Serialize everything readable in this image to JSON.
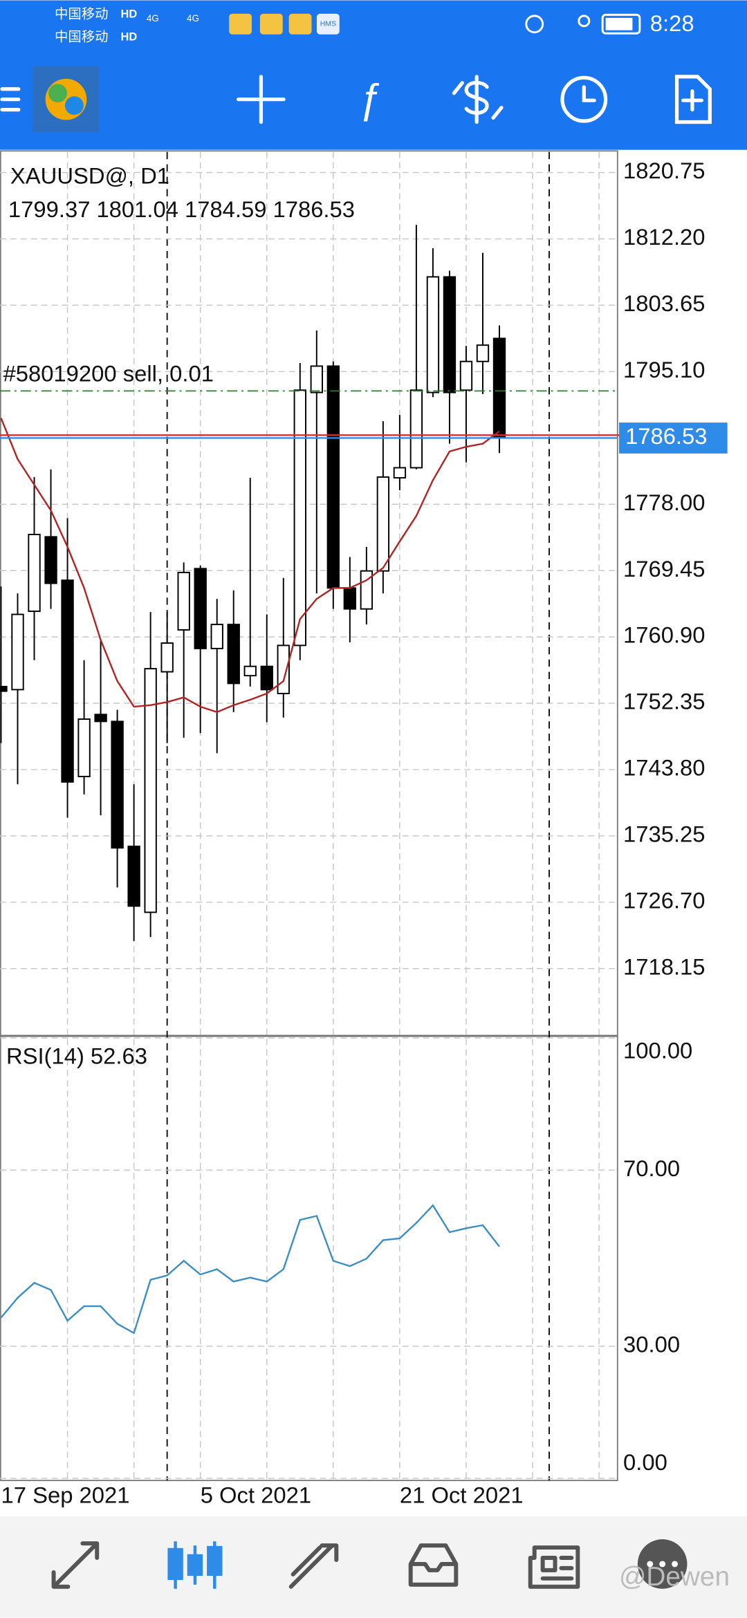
{
  "status_bar": {
    "carrier_1": "中国移动",
    "carrier_2": "中国移动",
    "badge": "HD",
    "network": "4G",
    "hms": "HMS",
    "time": "8:28"
  },
  "chart_data": {
    "type": "candlestick",
    "title": "XAUUSD@, D1",
    "categories": [
      "17 Sep 2021",
      null,
      null,
      null,
      null,
      null,
      null,
      null,
      null,
      null,
      null,
      null,
      "5 Oct 2021",
      null,
      null,
      null,
      null,
      null,
      null,
      null,
      null,
      null,
      null,
      null,
      "21 Oct 2021",
      null,
      null,
      null,
      null,
      null,
      null
    ],
    "open": [
      1754.5,
      1754.1,
      1764.2,
      1773.8,
      1768.2,
      1742.9,
      1750.9,
      1750.0,
      1733.9,
      1725.4,
      1756.4,
      1761.8,
      1769.7,
      1759.4,
      1762.5,
      1755.9,
      1757.1,
      1753.6,
      1759.8,
      1792.4,
      1795.8,
      1767.2,
      1764.5,
      1769.4,
      1781.4,
      1782.7,
      1792.4,
      1807.3,
      1792.7,
      1796.4,
      1799.37
    ],
    "high": [
      1767.4,
      1766.5,
      1781.5,
      1782.5,
      1776.2,
      1757.9,
      1760.5,
      1751.5,
      1741.9,
      1764.1,
      1764.1,
      1770.5,
      1770.1,
      1765.8,
      1766.9,
      1781.4,
      1763.8,
      1768.5,
      1796.2,
      1800.4,
      1796.4,
      1771.2,
      1772.5,
      1788.7,
      1789.5,
      1814.0,
      1811.0,
      1808.1,
      1798.4,
      1810.4,
      1801.04
    ],
    "low": [
      1747.2,
      1741.9,
      1757.9,
      1764.5,
      1737.6,
      1740.6,
      1737.9,
      1728.6,
      1721.7,
      1722.2,
      1747.2,
      1747.9,
      1748.5,
      1745.9,
      1751.2,
      1754.5,
      1749.9,
      1750.5,
      1757.9,
      1766.5,
      1764.5,
      1760.2,
      1762.5,
      1766.5,
      1779.8,
      1782.5,
      1791.8,
      1785.8,
      1783.4,
      1792.2,
      1784.59
    ],
    "close": [
      1753.9,
      1763.8,
      1774.1,
      1767.8,
      1742.2,
      1750.3,
      1750.0,
      1733.7,
      1726.2,
      1756.8,
      1760.1,
      1769.2,
      1759.4,
      1762.5,
      1754.9,
      1757.1,
      1754.1,
      1759.8,
      1792.7,
      1795.8,
      1767.2,
      1764.5,
      1769.4,
      1781.5,
      1782.7,
      1792.7,
      1807.3,
      1792.4,
      1796.4,
      1798.5,
      1786.53
    ],
    "bull_color": "#ffffff",
    "bear_color": "#000000",
    "ma": {
      "color": "#b22222",
      "values": [
        1789.1,
        1783.8,
        1780.5,
        1777.2,
        1772.5,
        1767.2,
        1760.5,
        1755.2,
        1751.9,
        1752.1,
        1752.5,
        1753.1,
        1751.9,
        1751.2,
        1752.1,
        1752.8,
        1753.6,
        1755.2,
        1763.2,
        1765.8,
        1767.2,
        1767.2,
        1768.2,
        1769.8,
        1773.2,
        1776.5,
        1781.1,
        1784.8,
        1785.4,
        1785.8,
        1787.4
      ]
    },
    "order": {
      "label": "#58019200 sell, 0.01",
      "price": 1792.6,
      "color": "#2e7d32"
    },
    "ask": {
      "price": 1786.9,
      "color": "#d32f2f"
    },
    "bid_color": "#2f8be8",
    "ylim": [
      1709.6,
      1823.4
    ],
    "yticks": [
      1820.75,
      {
        "value": 1812.2,
        "label": "1812.20"
      },
      1803.65,
      {
        "value": 1795.1,
        "label": "1795.10"
      },
      {
        "value": 1778,
        "label": "1778.00"
      },
      1769.45,
      {
        "value": 1760.9,
        "label": "1760.90"
      },
      1752.35,
      {
        "value": 1743.8,
        "label": "1743.80"
      },
      1735.25,
      {
        "value": 1726.7,
        "label": "1726.70"
      },
      1718.15
    ],
    "grid": true,
    "rsi": {
      "title": "RSI(14)",
      "color": "#3a8fc0",
      "values": [
        36.5,
        41.0,
        44.4,
        42.8,
        35.8,
        39.1,
        39.1,
        35.1,
        33.0,
        45.1,
        46.1,
        49.4,
        46.3,
        47.5,
        44.7,
        45.6,
        44.7,
        47.5,
        58.7,
        59.6,
        49.4,
        48.2,
        49.9,
        54.1,
        54.5,
        58.0,
        62.0,
        55.9,
        56.8,
        57.5,
        52.63
      ],
      "ylim": [
        0,
        100
      ],
      "yticks": [
        {
          "value": 100,
          "label": "100.00"
        },
        {
          "value": 70,
          "label": "70.00"
        },
        {
          "value": 30,
          "label": "30.00"
        },
        {
          "value": 0,
          "label": "0.00"
        }
      ]
    }
  },
  "bottom_nav": {
    "watermark": "@Dewen"
  }
}
